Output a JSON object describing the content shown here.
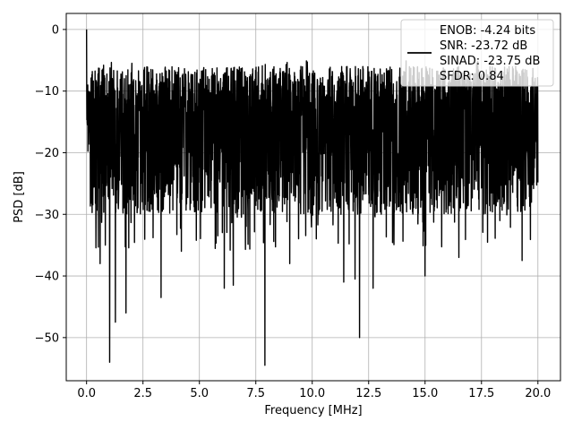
{
  "chart_data": {
    "type": "line",
    "title": "",
    "xlabel": "Frequency [MHz]",
    "ylabel": "PSD [dB]",
    "xlim": [
      -0.9,
      21.0
    ],
    "ylim": [
      -57.0,
      2.6
    ],
    "xticks": [
      0.0,
      2.5,
      5.0,
      7.5,
      10.0,
      12.5,
      15.0,
      17.5,
      20.0
    ],
    "xtick_labels": [
      "0.0",
      "2.5",
      "5.0",
      "7.5",
      "10.0",
      "12.5",
      "15.0",
      "17.5",
      "20.0"
    ],
    "yticks": [
      0,
      -10,
      -20,
      -30,
      -40,
      -50
    ],
    "ytick_labels": [
      "0",
      "−10",
      "−20",
      "−30",
      "−40",
      "−50"
    ],
    "grid": true,
    "legend_position": "upper-right",
    "legend_lines": [
      "ENOB: -4.24 bits",
      "SNR: -23.72 dB",
      "SINAD: -23.75 dB",
      "SFDR: 0.84"
    ],
    "series": [
      {
        "color": "#000000",
        "x_range": [
          0.0,
          20.0
        ],
        "peak": {
          "x": 0.0,
          "y": 0.0
        },
        "band_top_approx": -8.0,
        "band_bottom_approx": -28.0,
        "notable_dips": [
          {
            "x": 1.02,
            "y": -54.0
          },
          {
            "x": 1.28,
            "y": -47.5
          },
          {
            "x": 0.83,
            "y": -35.0
          },
          {
            "x": 0.6,
            "y": -38.0
          },
          {
            "x": 1.75,
            "y": -46.0
          },
          {
            "x": 3.3,
            "y": -43.5
          },
          {
            "x": 4.2,
            "y": -36.0
          },
          {
            "x": 6.1,
            "y": -42.0
          },
          {
            "x": 6.5,
            "y": -41.5
          },
          {
            "x": 7.9,
            "y": -54.5
          },
          {
            "x": 9.0,
            "y": -38.0
          },
          {
            "x": 11.4,
            "y": -41.0
          },
          {
            "x": 12.1,
            "y": -50.0
          },
          {
            "x": 11.9,
            "y": -40.5
          },
          {
            "x": 12.7,
            "y": -42.0
          },
          {
            "x": 15.0,
            "y": -40.0
          },
          {
            "x": 16.5,
            "y": -37.0
          },
          {
            "x": 19.3,
            "y": -37.5
          }
        ]
      }
    ]
  }
}
